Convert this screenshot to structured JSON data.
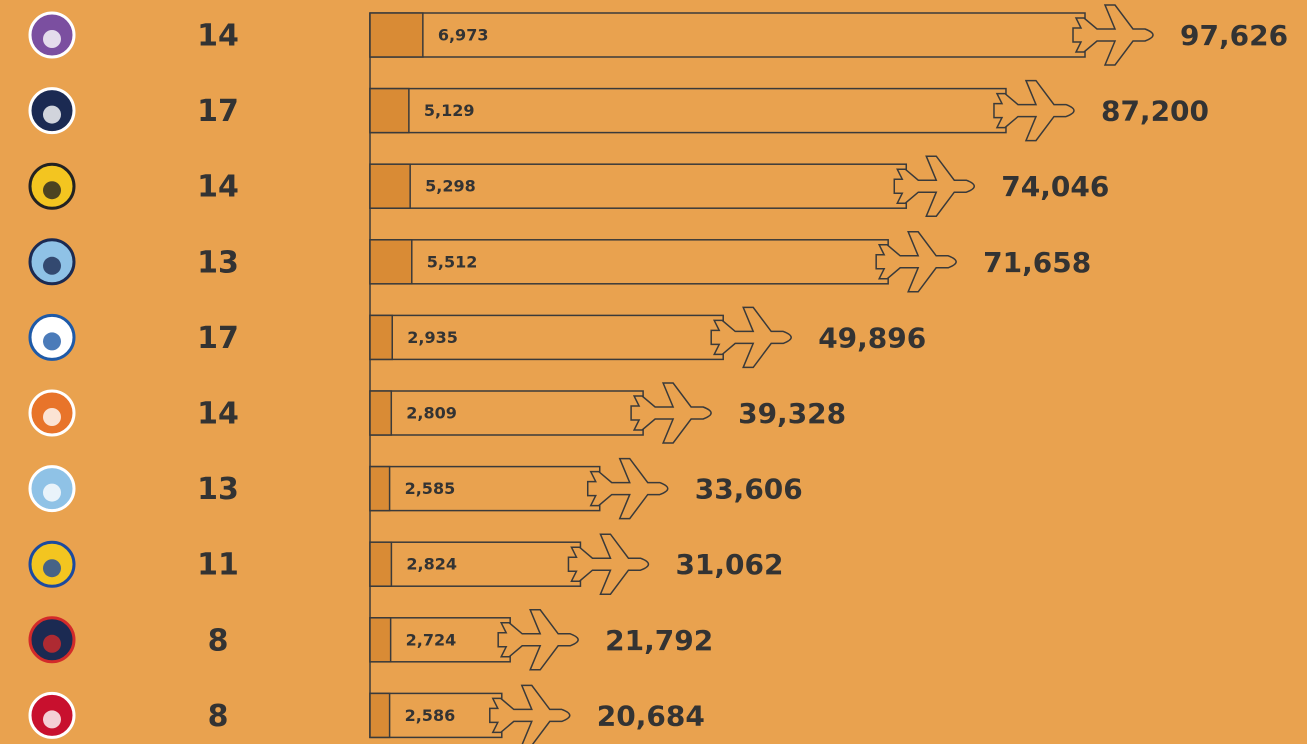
{
  "chart_data": {
    "type": "bar",
    "counts": [
      14,
      17,
      14,
      13,
      17,
      14,
      13,
      11,
      8,
      8
    ],
    "series": [
      {
        "color": "#d98b35",
        "values": [
          6973,
          5129,
          5298,
          5512,
          2935,
          2809,
          2585,
          2824,
          2724,
          2586
        ],
        "value_labels": [
          "6,973",
          "5,129",
          "5,298",
          "5,512",
          "2,935",
          "2,809",
          "2,585",
          "2,824",
          "2,724",
          "2,586"
        ]
      },
      {
        "color": "#e9a24f",
        "values": [
          97626,
          87200,
          74046,
          71658,
          49896,
          39328,
          33606,
          31062,
          21792,
          20684
        ],
        "value_labels": [
          "97,626",
          "87,200",
          "74,046",
          "71,658",
          "49,896",
          "39,328",
          "33,606",
          "31,062",
          "21,792",
          "20,684"
        ]
      }
    ]
  }
}
